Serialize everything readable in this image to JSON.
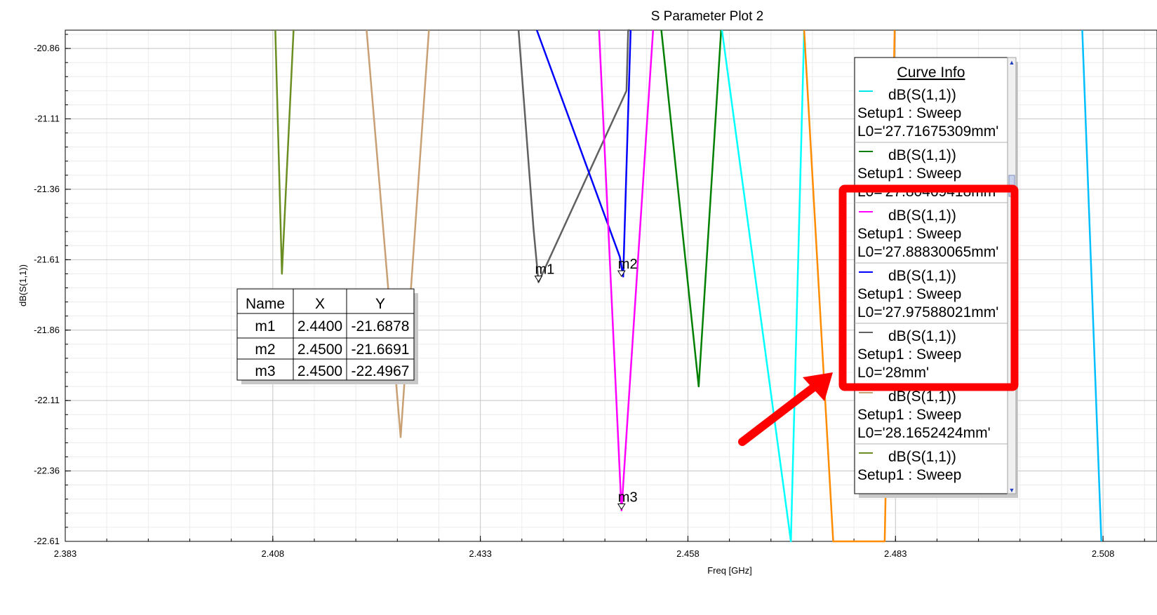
{
  "chart_data": {
    "type": "line",
    "title": "S Parameter Plot 2",
    "xlabel": "Freq [GHz]",
    "ylabel": "dB(S(1,1))",
    "xlim": [
      2.383,
      2.5145
    ],
    "ylim": [
      -22.61,
      -20.795
    ],
    "grid": true,
    "x_ticks": [
      2.383,
      2.408,
      2.433,
      2.458,
      2.483,
      2.508
    ],
    "x_tick_labels": [
      "2.383",
      "2.408",
      "2.433",
      "2.458",
      "2.483",
      "2.508"
    ],
    "y_ticks": [
      -20.86,
      -21.11,
      -21.36,
      -21.61,
      -21.86,
      -22.11,
      -22.36,
      -22.61
    ],
    "y_tick_labels": [
      "-20.86",
      "-21.11",
      "-21.36",
      "-21.61",
      "-21.86",
      "-22.11",
      "-22.36",
      "-22.61"
    ],
    "series": [
      {
        "color": "#6b8e23",
        "x": [
          2.4083,
          2.4091,
          2.4105
        ],
        "y": [
          -20.795,
          -21.66,
          -20.795
        ]
      },
      {
        "color": "#c8a074",
        "x": [
          2.4193,
          2.4234,
          2.4268
        ],
        "y": [
          -20.795,
          -22.24,
          -20.795
        ]
      },
      {
        "color": "#606060",
        "x": [
          2.4376,
          2.4394,
          2.44,
          2.4506,
          2.4508,
          2.451
        ],
        "y": [
          -20.795,
          -21.5,
          -21.69,
          -21.01,
          -20.795,
          -20.795
        ]
      },
      {
        "color": "#0000ff",
        "x": [
          2.4398,
          2.4498,
          2.4502,
          2.4511
        ],
        "y": [
          -20.795,
          -21.6,
          -21.67,
          -20.795
        ]
      },
      {
        "color": "#ff00ff",
        "x": [
          2.4473,
          2.45,
          2.4538
        ],
        "y": [
          -20.795,
          -22.5,
          -20.795
        ]
      },
      {
        "color": "#008000",
        "x": [
          2.4548,
          2.4593,
          2.462
        ],
        "y": [
          -20.795,
          -22.06,
          -20.795
        ]
      },
      {
        "color": "#00ffff",
        "x": [
          2.4621,
          2.4704,
          2.472
        ],
        "y": [
          -20.795,
          -22.61,
          -20.795
        ]
      },
      {
        "color": "#ff8c00",
        "x": [
          2.472,
          2.4755,
          2.4817,
          2.4829
        ],
        "y": [
          -20.795,
          -22.61,
          -22.61,
          -20.795
        ]
      },
      {
        "color": "#00bfff",
        "x": [
          2.5055,
          2.5078
        ],
        "y": [
          -20.795,
          -22.61
        ]
      }
    ],
    "markers": [
      {
        "name": "m1",
        "x": 2.44,
        "y": -21.6878
      },
      {
        "name": "m2",
        "x": 2.45,
        "y": -21.6691
      },
      {
        "name": "m3",
        "x": 2.45,
        "y": -22.4967
      }
    ]
  },
  "marker_table": {
    "headers": [
      "Name",
      "X",
      "Y"
    ],
    "rows": [
      [
        "m1",
        "2.4400",
        "-21.6878"
      ],
      [
        "m2",
        "2.4500",
        "-21.6691"
      ],
      [
        "m3",
        "2.4500",
        "-22.4967"
      ]
    ]
  },
  "legend": {
    "title": "Curve Info",
    "entries": [
      {
        "color": "#00e5e5",
        "lines": [
          "dB(S(1,1))",
          "Setup1 : Sweep",
          "L0='27.71675309mm'"
        ]
      },
      {
        "color": "#008000",
        "lines": [
          "dB(S(1,1))",
          "Setup1 : Sweep",
          "L0='27.80469418mm'"
        ]
      },
      {
        "color": "#ff00ff",
        "lines": [
          "dB(S(1,1))",
          "Setup1 : Sweep",
          "L0='27.88830065mm'"
        ]
      },
      {
        "color": "#0000ff",
        "lines": [
          "dB(S(1,1))",
          "Setup1 : Sweep",
          "L0='27.97588021mm'"
        ]
      },
      {
        "color": "#606060",
        "lines": [
          "dB(S(1,1))",
          "Setup1 : Sweep",
          "L0='28mm'"
        ]
      },
      {
        "color": "#c8a074",
        "lines": [
          "dB(S(1,1))",
          "Setup1 : Sweep",
          "L0='28.1652424mm'"
        ]
      },
      {
        "color": "#6b8e23",
        "lines": [
          "dB(S(1,1))",
          "Setup1 : Sweep"
        ]
      }
    ]
  },
  "annotation": {
    "highlight_color": "#ff0000"
  }
}
